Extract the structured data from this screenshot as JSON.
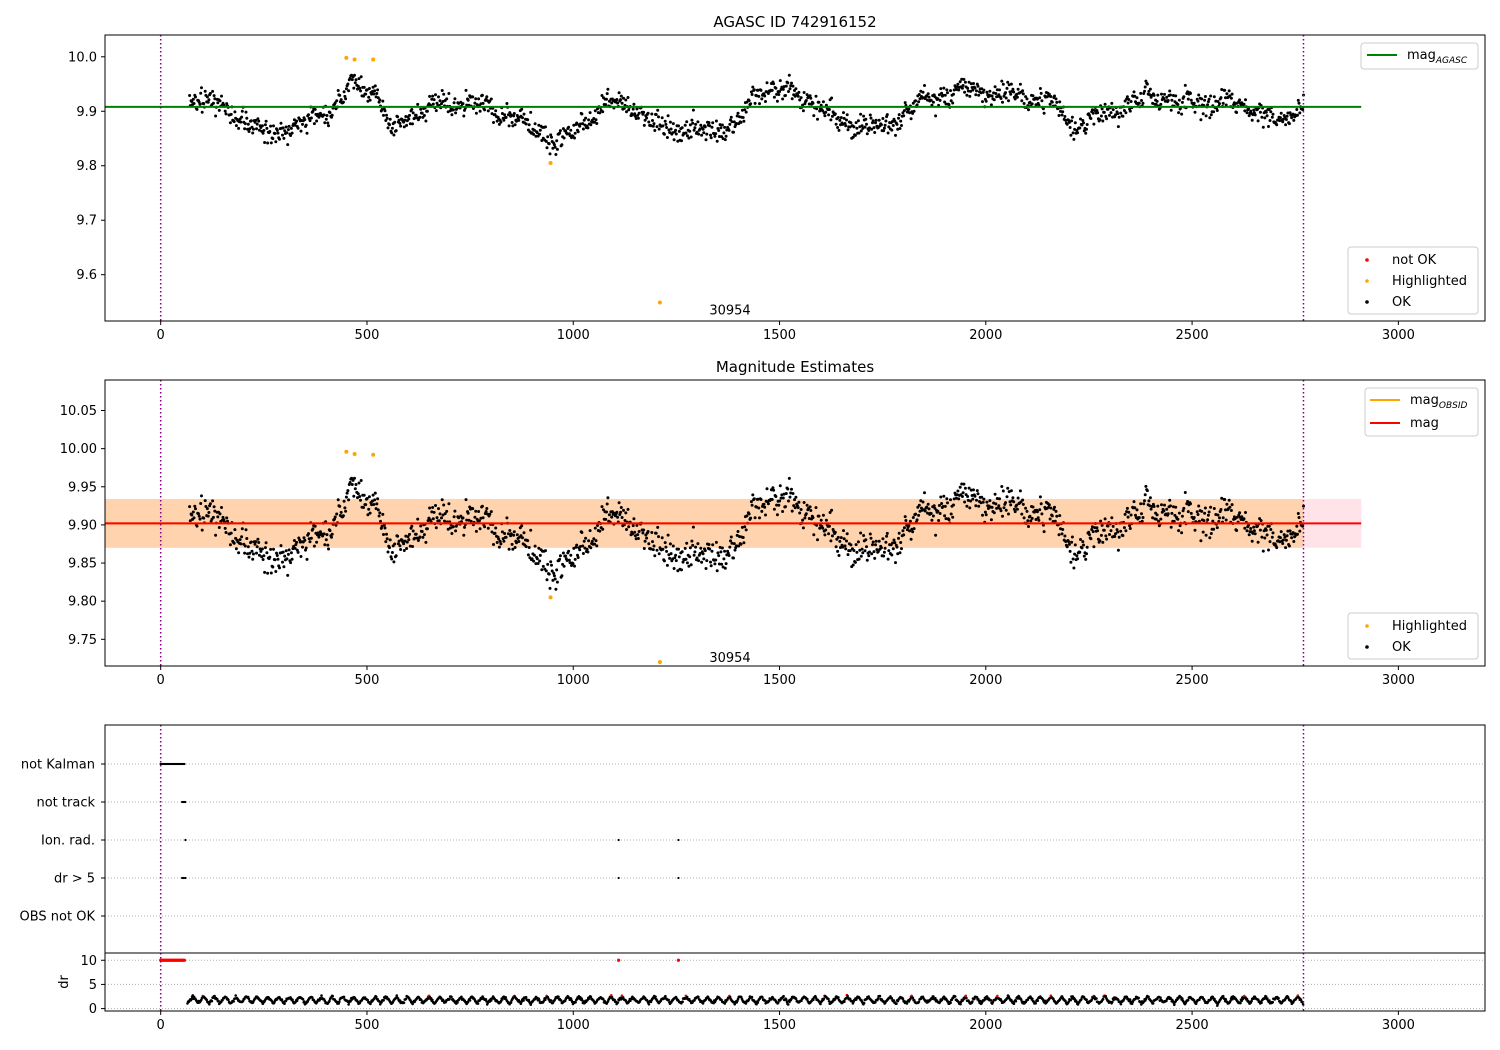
{
  "chart_data": [
    {
      "type": "scatter",
      "title": "AGASC ID 742916152",
      "xlim": [
        -135,
        3210
      ],
      "ylim": [
        9.515,
        10.04
      ],
      "x_ticks": [
        0,
        500,
        1000,
        1500,
        2000,
        2500,
        3000
      ],
      "y_ticks": [
        9.6,
        9.7,
        9.8,
        9.9,
        10.0
      ],
      "y_tick_labels": [
        "9.6",
        "9.7",
        "9.8",
        "9.9",
        "10.0"
      ],
      "hlines": [
        {
          "name": "mag",
          "subscript": "AGASC",
          "y": 9.908,
          "x": [
            -135,
            2910
          ],
          "color": "#008000"
        }
      ],
      "vlines": [
        {
          "x": 0,
          "color": "#800080"
        },
        {
          "x": 2770,
          "color": "#800080"
        }
      ],
      "obsid_label": {
        "text": "30954",
        "x": 1380,
        "y": 9.527
      },
      "legend_lines_placement": "upper right",
      "legend_points_placement": "lower right",
      "point_legend": [
        {
          "label": "not OK",
          "color": "#ff0000"
        },
        {
          "label": "Highlighted",
          "color": "#ffa500"
        },
        {
          "label": "OK",
          "color": "#000000"
        }
      ],
      "series_ok": {
        "color": "#000000",
        "x_range": [
          70,
          2770
        ],
        "profile_x": [
          70,
          150,
          250,
          330,
          420,
          460,
          520,
          560,
          620,
          750,
          880,
          960,
          1080,
          1130,
          1210,
          1330,
          1400,
          1450,
          1550,
          1650,
          1750,
          1850,
          1950,
          2050,
          2150,
          2220,
          2300,
          2350,
          2400,
          2480,
          2600,
          2700,
          2770
        ],
        "profile_y": [
          9.925,
          9.91,
          9.86,
          9.87,
          9.905,
          9.95,
          9.94,
          9.86,
          9.9,
          9.92,
          9.88,
          9.84,
          9.91,
          9.915,
          9.87,
          9.86,
          9.88,
          9.94,
          9.93,
          9.88,
          9.87,
          9.92,
          9.94,
          9.93,
          9.92,
          9.87,
          9.9,
          9.91,
          9.935,
          9.91,
          9.92,
          9.88,
          9.91
        ],
        "scatter_sd": 0.018
      },
      "series_highlighted": [
        {
          "x": 450,
          "y": 9.998
        },
        {
          "x": 470,
          "y": 9.995
        },
        {
          "x": 515,
          "y": 9.995
        },
        {
          "x": 945,
          "y": 9.805
        },
        {
          "x": 1210,
          "y": 9.549
        }
      ]
    },
    {
      "type": "scatter",
      "title": "Magnitude Estimates",
      "xlim": [
        -135,
        3210
      ],
      "ylim": [
        9.715,
        10.09
      ],
      "x_ticks": [
        0,
        500,
        1000,
        1500,
        2000,
        2500,
        3000
      ],
      "y_ticks": [
        9.75,
        9.8,
        9.85,
        9.9,
        9.95,
        10.0,
        10.05
      ],
      "y_tick_labels": [
        "9.75",
        "9.80",
        "9.85",
        "9.90",
        "9.95",
        "10.00",
        "10.05"
      ],
      "hlines": [
        {
          "name": "mag",
          "subscript": "OBSID",
          "y": 9.902,
          "x": [
            -135,
            2770
          ],
          "color": "#ffa500"
        },
        {
          "name": "mag",
          "subscript": "",
          "y": 9.902,
          "x": [
            -135,
            2910
          ],
          "color": "#ff0000"
        }
      ],
      "bands": [
        {
          "y": [
            9.87,
            9.934
          ],
          "x": [
            -135,
            2910
          ],
          "color": "#ffc0cb"
        },
        {
          "y": [
            9.87,
            9.934
          ],
          "x": [
            -135,
            2770
          ],
          "color": "#ffa500"
        }
      ],
      "vlines": [
        {
          "x": 0,
          "color": "#800080"
        },
        {
          "x": 2770,
          "color": "#800080"
        }
      ],
      "obsid_label": {
        "text": "30954",
        "x": 1380,
        "y": 9.72
      },
      "legend_lines_placement": "upper right",
      "legend_points_placement": "lower right",
      "point_legend": [
        {
          "label": "Highlighted",
          "color": "#ffa500"
        },
        {
          "label": "OK",
          "color": "#000000"
        }
      ],
      "series_ok": {
        "color": "#000000",
        "x_range": [
          70,
          2770
        ],
        "profile_x": [
          70,
          150,
          250,
          330,
          420,
          460,
          520,
          560,
          620,
          750,
          880,
          960,
          1080,
          1130,
          1210,
          1330,
          1400,
          1450,
          1550,
          1650,
          1750,
          1850,
          1950,
          2050,
          2150,
          2220,
          2300,
          2350,
          2400,
          2480,
          2600,
          2700,
          2770
        ],
        "profile_y": [
          9.92,
          9.905,
          9.855,
          9.865,
          9.9,
          9.945,
          9.935,
          9.855,
          9.895,
          9.915,
          9.875,
          9.835,
          9.905,
          9.91,
          9.865,
          9.855,
          9.875,
          9.935,
          9.925,
          9.875,
          9.865,
          9.915,
          9.935,
          9.925,
          9.915,
          9.865,
          9.895,
          9.905,
          9.93,
          9.905,
          9.915,
          9.875,
          9.905
        ],
        "scatter_sd": 0.018
      },
      "series_highlighted": [
        {
          "x": 450,
          "y": 9.996
        },
        {
          "x": 470,
          "y": 9.993
        },
        {
          "x": 515,
          "y": 9.992
        },
        {
          "x": 945,
          "y": 9.805
        },
        {
          "x": 1210,
          "y": 9.72
        }
      ]
    },
    {
      "type": "scatter",
      "title": "",
      "xlim": [
        -135,
        3210
      ],
      "x_ticks": [
        0,
        500,
        1000,
        1500,
        2000,
        2500,
        3000
      ],
      "flag_categories": [
        "not Kalman",
        "not track",
        "Ion. rad.",
        "dr > 5",
        "OBS not OK"
      ],
      "flags": [
        {
          "category": "not Kalman",
          "x_range": [
            0,
            58
          ]
        },
        {
          "category": "not track",
          "x_range": [
            52,
            60
          ]
        },
        {
          "category": "Ion. rad.",
          "x": [
            60,
            1110,
            1255
          ]
        },
        {
          "category": "dr > 5",
          "x": [
            52,
            56,
            60,
            1110,
            1255
          ]
        },
        {
          "category": "OBS not OK",
          "x": []
        }
      ],
      "vlines": [
        {
          "x": 0,
          "color": "#800080"
        },
        {
          "x": 2770,
          "color": "#800080"
        }
      ]
    },
    {
      "type": "scatter",
      "title": "",
      "ylabel": "dr",
      "xlim": [
        -135,
        3210
      ],
      "ylim": [
        -0.5,
        11.5
      ],
      "x_ticks": [
        0,
        500,
        1000,
        1500,
        2000,
        2500,
        3000
      ],
      "y_ticks": [
        0,
        5,
        10
      ],
      "y_tick_labels": [
        "0",
        "5",
        "10"
      ],
      "series_high_dr": {
        "color": "#ff0000",
        "x_range": [
          0,
          58
        ],
        "y": 10,
        "extra_x": [
          1110,
          1255
        ]
      },
      "series_dr": {
        "color": "#000000",
        "red_color": "#ff0000",
        "x_range": [
          65,
          2770
        ],
        "baseline": 1.5,
        "amplitude": 1.4
      },
      "vlines": [
        {
          "x": 0,
          "color": "#800080"
        },
        {
          "x": 2770,
          "color": "#800080"
        }
      ]
    }
  ]
}
